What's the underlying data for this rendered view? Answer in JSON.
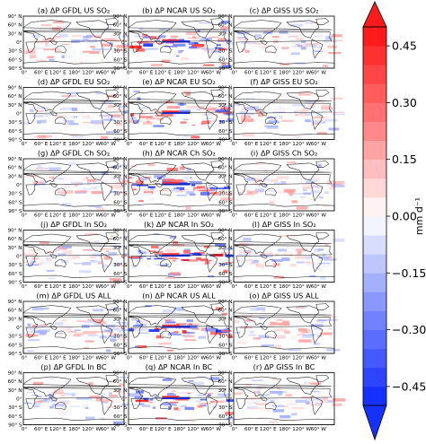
{
  "figure": {
    "panel_titles": [
      "(a) ΔP GFDL US SO₂",
      "(b) ΔP NCAR US SO₂",
      "(c) ΔP GISS US SO₂",
      "(d) ΔP GFDL EU SO₂",
      "(e) ΔP NCAR EU SO₂",
      "(f) ΔP GISS EU SO₂",
      "(g) ΔP GFDL Ch SO₂",
      "(h) ΔP NCAR Ch SO₂",
      "(i) ΔP GISS Ch SO₂",
      "(j) ΔP GFDL In SO₂",
      "(k) ΔP NCAR In SO₂",
      "(l) ΔP GISS In SO₂",
      "(m) ΔP GFDL US ALL",
      "(n) ΔP NCAR US ALL",
      "(o) ΔP GISS US ALL",
      "(p) ΔP GFDL In BC",
      "(q) ΔP NCAR In BC",
      "(r) ΔP GISS In BC"
    ],
    "lat_ticks": [
      "90° N",
      "60° N",
      "30° N",
      "0°",
      "30° S",
      "60° S",
      "90° S"
    ],
    "lon_ticks": [
      "0°",
      "60° E",
      "120° E",
      "180°",
      "120° W",
      "60° W"
    ],
    "colors": {
      "negative_max": "#0b26ff",
      "negative_mid": "#7c8cff",
      "neutral": "#ffffff",
      "positive_mid": "#ff7c7c",
      "positive_max": "#ff1010",
      "frame": "#000000"
    }
  },
  "chart_data": {
    "type": "heatmap",
    "layout": {
      "rows": 6,
      "cols": 3
    },
    "variable": "ΔP",
    "models": [
      "GFDL",
      "NCAR",
      "GISS"
    ],
    "experiments": [
      "US SO₂",
      "EU SO₂",
      "Ch SO₂",
      "In SO₂",
      "US ALL",
      "In BC"
    ],
    "xaxis": {
      "ticks": [
        "0°",
        "60° E",
        "120° E",
        "180°",
        "120° W",
        "60° W"
      ],
      "range": [
        0,
        360
      ]
    },
    "yaxis": {
      "ticks": [
        "90° N",
        "60° N",
        "30° N",
        "0°",
        "30° S",
        "60° S",
        "90° S"
      ],
      "range": [
        -90,
        90
      ]
    },
    "colorbar": {
      "label": "mm d⁻¹",
      "range": [
        -0.5,
        0.5
      ],
      "ticks": [
        -0.45,
        -0.3,
        -0.15,
        0.0,
        0.15,
        0.3,
        0.45
      ],
      "tick_labels": [
        "−0.45",
        "−0.30",
        "−0.15",
        "0.00",
        "0.15",
        "0.30",
        "0.45"
      ],
      "levels": 20,
      "colormap": "bwr",
      "extend": "both"
    }
  }
}
